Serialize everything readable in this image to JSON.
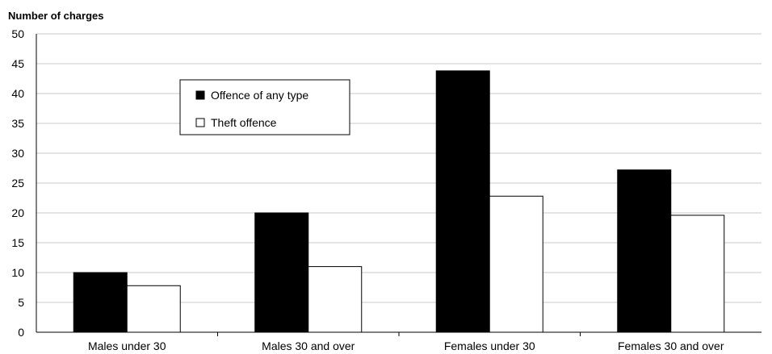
{
  "chart_data": {
    "type": "bar",
    "ylabel": "Number of charges",
    "categories": [
      "Males under 30",
      "Males 30 and over",
      "Females under 30",
      "Females 30 and over"
    ],
    "series": [
      {
        "name": "Offence of any type",
        "values": [
          10,
          20,
          43.8,
          27.2
        ],
        "color": "#000000"
      },
      {
        "name": "Theft offence",
        "values": [
          7.8,
          11,
          22.8,
          19.6
        ],
        "color": "#ffffff"
      }
    ],
    "ylim": [
      0,
      50
    ],
    "yticks": [
      0,
      5,
      10,
      15,
      20,
      25,
      30,
      35,
      40,
      45,
      50
    ],
    "grid": true,
    "legend_position": "top-left inside plot"
  }
}
